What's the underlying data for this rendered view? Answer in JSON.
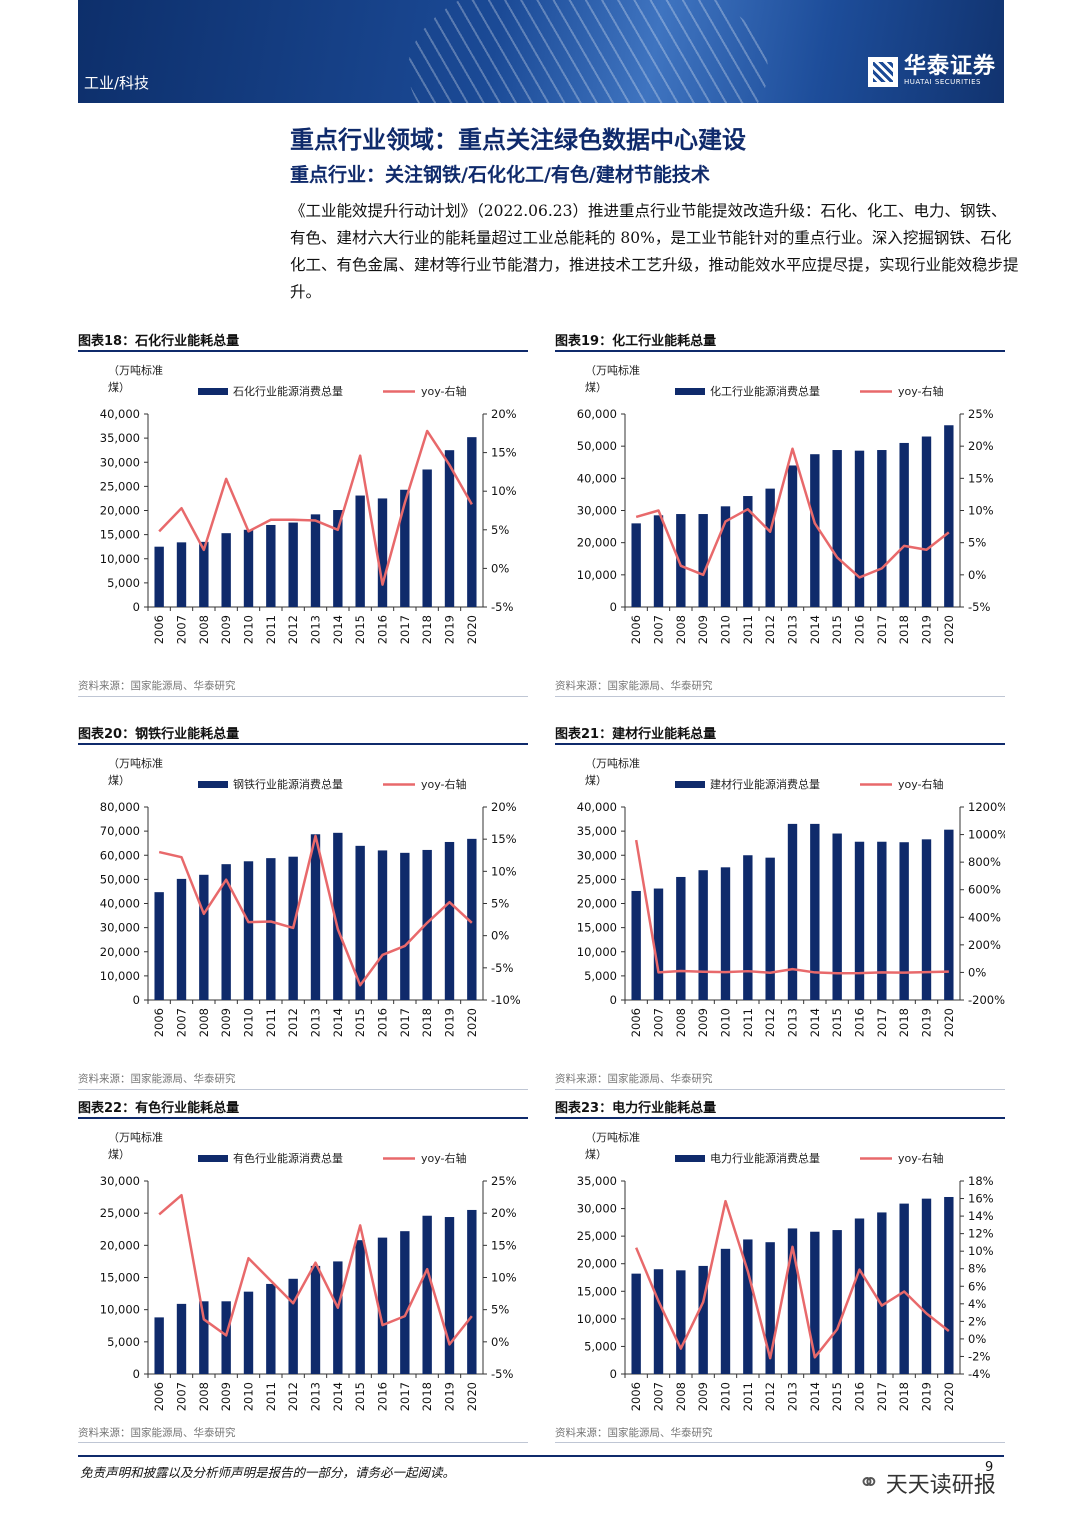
{
  "header": {
    "section_label": "工业/科技",
    "logo_cn": "华泰证券",
    "logo_en": "HUATAI SECURITIES"
  },
  "page_title": "重点行业领域：重点关注绿色数据中心建设",
  "subtitle": "重点行业：关注钢铁/石化化工/有色/建材节能技术",
  "intro_text": "《工业能效提升行动计划》（2022.06.23）推进重点行业节能提效改造升级：石化、化工、电力、钢铁、有色、建材六大行业的能耗量超过工业总能耗的 80%，是工业节能针对的重点行业。深入挖掘钢铁、石化化工、有色金属、建材等行业节能潜力，推进技术工艺升级，推动能效水平应提尽提，实现行业能效稳步提升。",
  "colors": {
    "bar": "#0f2a6b",
    "line": "#e8696b",
    "brand": "#1b4a96"
  },
  "chart_data": [
    {
      "type": "bar+line",
      "figure_label": "图表18：",
      "title": "石化行业能耗总量",
      "ylabel": "（万吨标准煤）",
      "ylabel_lines": [
        "（万吨标准",
        "煤）"
      ],
      "categories": [
        "2006",
        "2007",
        "2008",
        "2009",
        "2010",
        "2011",
        "2012",
        "2013",
        "2014",
        "2015",
        "2016",
        "2017",
        "2018",
        "2019",
        "2020"
      ],
      "series": [
        {
          "name": "石化行业能源消费总量",
          "kind": "bar",
          "axis": "left",
          "values": [
            12500,
            13400,
            13500,
            15300,
            16000,
            17000,
            17500,
            19200,
            20100,
            23100,
            22500,
            24300,
            28500,
            32500,
            35200
          ]
        },
        {
          "name": "yoy-右轴",
          "kind": "line",
          "axis": "right",
          "values": [
            4.8,
            7.8,
            2.4,
            11.6,
            4.8,
            6.3,
            6.3,
            6.2,
            5.0,
            14.6,
            -2.1,
            8.5,
            17.8,
            13.4,
            8.3
          ]
        }
      ],
      "ylim": [
        0,
        40000
      ],
      "yticks": [
        0,
        5000,
        10000,
        15000,
        20000,
        25000,
        30000,
        35000,
        40000
      ],
      "y2lim": [
        -5,
        20
      ],
      "y2ticks": [
        -5,
        0,
        5,
        10,
        15,
        20
      ],
      "y2_format": "percent",
      "source": "资料来源：国家能源局、华泰研究"
    },
    {
      "type": "bar+line",
      "figure_label": "图表19：",
      "title": "化工行业能耗总量",
      "ylabel": "（万吨标准煤）",
      "ylabel_lines": [
        "（万吨标准",
        "煤）"
      ],
      "categories": [
        "2006",
        "2007",
        "2008",
        "2009",
        "2010",
        "2011",
        "2012",
        "2013",
        "2014",
        "2015",
        "2016",
        "2017",
        "2018",
        "2019",
        "2020"
      ],
      "series": [
        {
          "name": "化工行业能源消费总量",
          "kind": "bar",
          "axis": "left",
          "values": [
            26000,
            28500,
            28900,
            28900,
            31300,
            34500,
            36800,
            44000,
            47500,
            48800,
            48600,
            48800,
            51000,
            53000,
            56500
          ]
        },
        {
          "name": "yoy-右轴",
          "kind": "line",
          "axis": "right",
          "values": [
            9.0,
            10.0,
            1.4,
            0.0,
            8.3,
            10.2,
            6.7,
            19.6,
            8.0,
            2.7,
            -0.4,
            1.0,
            4.5,
            3.9,
            6.6
          ]
        }
      ],
      "ylim": [
        0,
        60000
      ],
      "yticks": [
        0,
        10000,
        20000,
        30000,
        40000,
        50000,
        60000
      ],
      "y2lim": [
        -5,
        25
      ],
      "y2ticks": [
        -5,
        0,
        5,
        10,
        15,
        20,
        25
      ],
      "y2_format": "percent",
      "source": "资料来源：国家能源局、华泰研究"
    },
    {
      "type": "bar+line",
      "figure_label": "图表20：",
      "title": "钢铁行业能耗总量",
      "ylabel": "（万吨标准煤）",
      "ylabel_lines": [
        "（万吨标准",
        "煤）"
      ],
      "categories": [
        "2006",
        "2007",
        "2008",
        "2009",
        "2010",
        "2011",
        "2012",
        "2013",
        "2014",
        "2015",
        "2016",
        "2017",
        "2018",
        "2019",
        "2020"
      ],
      "series": [
        {
          "name": "钢铁行业能源消费总量",
          "kind": "bar",
          "axis": "left",
          "values": [
            44700,
            50200,
            51900,
            56300,
            57500,
            58800,
            59400,
            68700,
            69300,
            63900,
            62000,
            61000,
            62200,
            65500,
            66800
          ]
        },
        {
          "name": "yoy-右轴",
          "kind": "line",
          "axis": "right",
          "values": [
            13.0,
            12.2,
            3.4,
            8.7,
            2.1,
            2.2,
            1.2,
            15.5,
            1.0,
            -7.7,
            -3.0,
            -1.6,
            2.0,
            5.2,
            2.0
          ]
        }
      ],
      "ylim": [
        0,
        80000
      ],
      "yticks": [
        0,
        10000,
        20000,
        30000,
        40000,
        50000,
        60000,
        70000,
        80000
      ],
      "y2lim": [
        -10,
        20
      ],
      "y2ticks": [
        -10,
        -5,
        0,
        5,
        10,
        15,
        20
      ],
      "y2_format": "percent",
      "source": "资料来源：国家能源局、华泰研究"
    },
    {
      "type": "bar+line",
      "figure_label": "图表21：",
      "title": "建材行业能耗总量",
      "ylabel": "（万吨标准煤）",
      "ylabel_lines": [
        "（万吨标准",
        "煤）"
      ],
      "categories": [
        "2006",
        "2007",
        "2008",
        "2009",
        "2010",
        "2011",
        "2012",
        "2013",
        "2014",
        "2015",
        "2016",
        "2017",
        "2018",
        "2019",
        "2020"
      ],
      "series": [
        {
          "name": "建材行业能源消费总量",
          "kind": "bar",
          "axis": "left",
          "values": [
            22600,
            23100,
            25500,
            26900,
            27500,
            30000,
            29500,
            36500,
            36500,
            34500,
            32800,
            32800,
            32700,
            33300,
            35300
          ]
        },
        {
          "name": "yoy-右轴",
          "kind": "line",
          "axis": "right",
          "values": [
            960,
            0,
            10,
            5,
            2,
            9,
            -2,
            24,
            0,
            -6,
            -5,
            0,
            -1,
            2,
            6
          ]
        }
      ],
      "ylim": [
        0,
        40000
      ],
      "yticks": [
        0,
        5000,
        10000,
        15000,
        20000,
        25000,
        30000,
        35000,
        40000
      ],
      "y2lim": [
        -200,
        1200
      ],
      "y2ticks": [
        -200,
        0,
        200,
        400,
        600,
        800,
        1000,
        1200
      ],
      "y2_format": "percent",
      "source": "资料来源：国家能源局、华泰研究"
    },
    {
      "type": "bar+line",
      "figure_label": "图表22：",
      "title": "有色行业能耗总量",
      "ylabel": "（万吨标准煤）",
      "ylabel_lines": [
        "（万吨标准",
        "煤）"
      ],
      "categories": [
        "2006",
        "2007",
        "2008",
        "2009",
        "2010",
        "2011",
        "2012",
        "2013",
        "2014",
        "2015",
        "2016",
        "2017",
        "2018",
        "2019",
        "2020"
      ],
      "series": [
        {
          "name": "有色行业能源消费总量",
          "kind": "bar",
          "axis": "left",
          "values": [
            8800,
            10900,
            11300,
            11300,
            12800,
            14000,
            14800,
            16800,
            17500,
            20800,
            21200,
            22200,
            24600,
            24400,
            25500
          ]
        },
        {
          "name": "yoy-右轴",
          "kind": "line",
          "axis": "right",
          "values": [
            19.8,
            22.8,
            3.5,
            1.0,
            13.0,
            9.5,
            6.0,
            12.3,
            5.3,
            18.1,
            2.6,
            4.0,
            11.3,
            -0.4,
            4.0
          ]
        }
      ],
      "ylim": [
        0,
        30000
      ],
      "yticks": [
        0,
        5000,
        10000,
        15000,
        20000,
        25000,
        30000
      ],
      "y2lim": [
        -5,
        25
      ],
      "y2ticks": [
        -5,
        0,
        5,
        10,
        15,
        20,
        25
      ],
      "y2_format": "percent",
      "source": "资料来源：国家能源局、华泰研究"
    },
    {
      "type": "bar+line",
      "figure_label": "图表23：",
      "title": "电力行业能耗总量",
      "ylabel": "（万吨标准煤）",
      "ylabel_lines": [
        "（万吨标准",
        "煤）"
      ],
      "categories": [
        "2006",
        "2007",
        "2008",
        "2009",
        "2010",
        "2011",
        "2012",
        "2013",
        "2014",
        "2015",
        "2016",
        "2017",
        "2018",
        "2019",
        "2020"
      ],
      "series": [
        {
          "name": "电力行业能源消费总量",
          "kind": "bar",
          "axis": "left",
          "values": [
            18200,
            19000,
            18800,
            19600,
            22700,
            24400,
            23900,
            26400,
            25800,
            26100,
            28200,
            29300,
            30900,
            31800,
            32100
          ]
        },
        {
          "name": "yoy-右轴",
          "kind": "line",
          "axis": "right",
          "values": [
            10.4,
            4.3,
            -1.1,
            4.2,
            15.7,
            7.7,
            -2.2,
            10.5,
            -2.1,
            1.1,
            7.9,
            3.8,
            5.4,
            2.9,
            0.9
          ]
        }
      ],
      "ylim": [
        0,
        35000
      ],
      "yticks": [
        0,
        5000,
        10000,
        15000,
        20000,
        25000,
        30000,
        35000
      ],
      "y2lim": [
        -4,
        18
      ],
      "y2ticks": [
        -4,
        -2,
        0,
        2,
        4,
        6,
        8,
        10,
        12,
        14,
        16,
        18
      ],
      "y2_format": "percent",
      "source": "资料来源：国家能源局、华泰研究"
    }
  ],
  "footer": {
    "disclaimer": "免责声明和披露以及分析师声明是报告的一部分，请务必一起阅读。",
    "page_number": "9",
    "watermark": "天天读研报",
    "watermark_icon": "wechat-icon"
  }
}
